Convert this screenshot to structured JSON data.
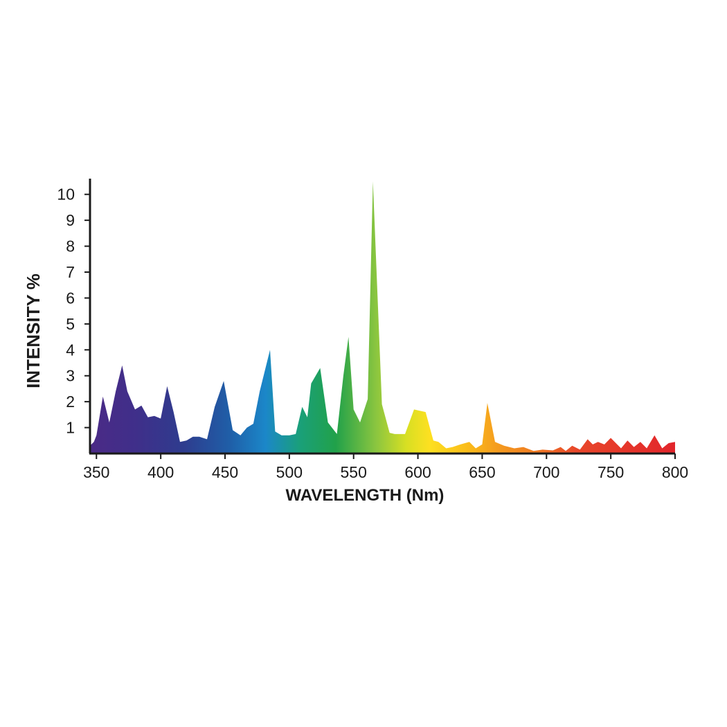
{
  "chart_data": {
    "type": "area",
    "xlabel": "WAVELENGTH (Nm)",
    "ylabel": "INTENSITY %",
    "xlim": [
      345,
      800
    ],
    "ylim": [
      0,
      10.5
    ],
    "x_ticks": [
      350,
      400,
      450,
      500,
      550,
      600,
      650,
      700,
      750,
      800
    ],
    "y_ticks": [
      1,
      2,
      3,
      4,
      5,
      6,
      7,
      8,
      9,
      10
    ],
    "grid": false,
    "legend": "none",
    "fill": "rainbow gradient by wavelength (violet to red)",
    "colors": {
      "violet": "#4b2a86",
      "indigo": "#2e3c8e",
      "blue": "#1f5fa8",
      "cyan_blue": "#1b87c9",
      "green": "#21a14a",
      "yellow_green": "#b5d334",
      "yellow": "#fde021",
      "amber": "#f7a41c",
      "orange": "#f07c22",
      "red": "#e2252b"
    },
    "x": [
      345,
      348,
      350,
      355,
      360,
      365,
      370,
      374,
      380,
      385,
      390,
      395,
      400,
      405,
      410,
      415,
      420,
      425,
      430,
      436,
      442,
      449,
      456,
      462,
      467,
      472,
      477,
      485,
      489,
      494,
      500,
      505,
      510,
      514,
      517,
      524,
      530,
      537,
      542,
      546,
      550,
      555,
      561,
      565,
      572,
      578,
      582,
      590,
      597,
      606,
      612,
      616,
      622,
      627,
      633,
      640,
      645,
      650,
      654,
      660,
      667,
      675,
      682,
      690,
      697,
      705,
      711,
      715,
      720,
      726,
      732,
      736,
      740,
      745,
      750,
      758,
      763,
      768,
      773,
      778,
      784,
      790,
      795,
      800
    ],
    "y": [
      0.3,
      0.45,
      0.7,
      2.2,
      1.2,
      2.4,
      3.4,
      2.4,
      1.7,
      1.85,
      1.4,
      1.45,
      1.35,
      2.6,
      1.6,
      0.45,
      0.5,
      0.65,
      0.65,
      0.55,
      1.8,
      2.8,
      0.9,
      0.7,
      1.0,
      1.15,
      2.4,
      4.0,
      0.85,
      0.7,
      0.7,
      0.75,
      1.8,
      1.4,
      2.7,
      3.3,
      1.2,
      0.75,
      3.0,
      4.5,
      1.7,
      1.2,
      2.1,
      10.5,
      1.9,
      0.8,
      0.75,
      0.75,
      1.7,
      1.6,
      0.5,
      0.45,
      0.2,
      0.25,
      0.35,
      0.45,
      0.2,
      0.35,
      1.95,
      0.45,
      0.3,
      0.2,
      0.25,
      0.1,
      0.15,
      0.12,
      0.25,
      0.1,
      0.3,
      0.15,
      0.55,
      0.35,
      0.45,
      0.35,
      0.6,
      0.2,
      0.5,
      0.25,
      0.45,
      0.2,
      0.7,
      0.2,
      0.4,
      0.45
    ]
  }
}
